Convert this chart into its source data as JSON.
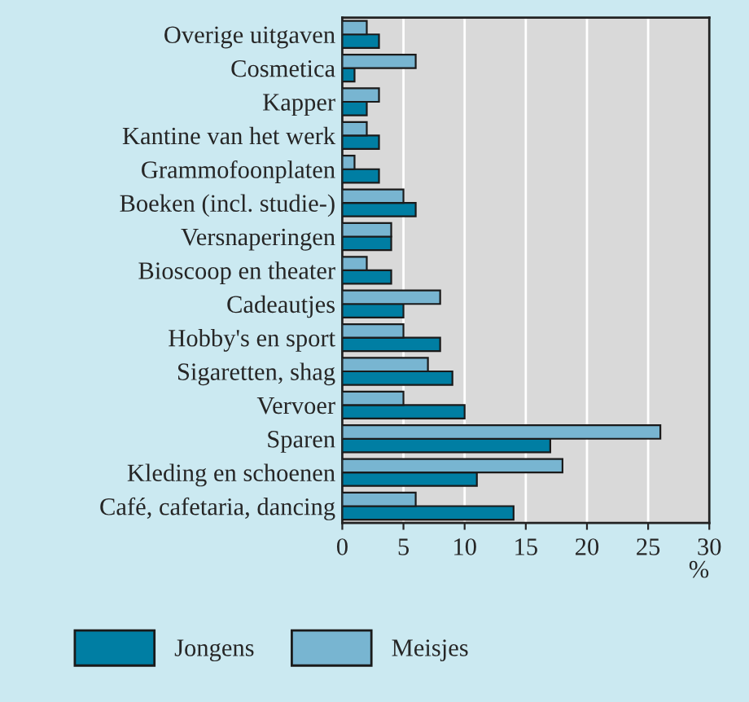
{
  "chart_data": {
    "type": "bar",
    "orientation": "horizontal",
    "xlabel": "%",
    "categories": [
      "Overige uitgaven",
      "Cosmetica",
      "Kapper",
      "Kantine van het werk",
      "Grammofoonplaten",
      "Boeken (incl. studie-)",
      "Versnaperingen",
      "Bioscoop en theater",
      "Cadeautjes",
      "Hobby's en sport",
      "Sigaretten, shag",
      "Vervoer",
      "Sparen",
      "Kleding en schoenen",
      "Café, cafetaria, dancing"
    ],
    "series": [
      {
        "name": "Jongens",
        "color": "#007ea3",
        "values": [
          3,
          1,
          2,
          3,
          3,
          6,
          4,
          4,
          5,
          8,
          9,
          10,
          17,
          11,
          14
        ]
      },
      {
        "name": "Meisjes",
        "color": "#78b5d1",
        "values": [
          2,
          6,
          3,
          2,
          1,
          5,
          4,
          2,
          8,
          5,
          7,
          5,
          26,
          18,
          6
        ]
      }
    ],
    "xlim": [
      0,
      30
    ],
    "xticks": [
      0,
      5,
      10,
      15,
      20,
      25,
      30
    ],
    "grid": "x",
    "legend": "bottom"
  }
}
